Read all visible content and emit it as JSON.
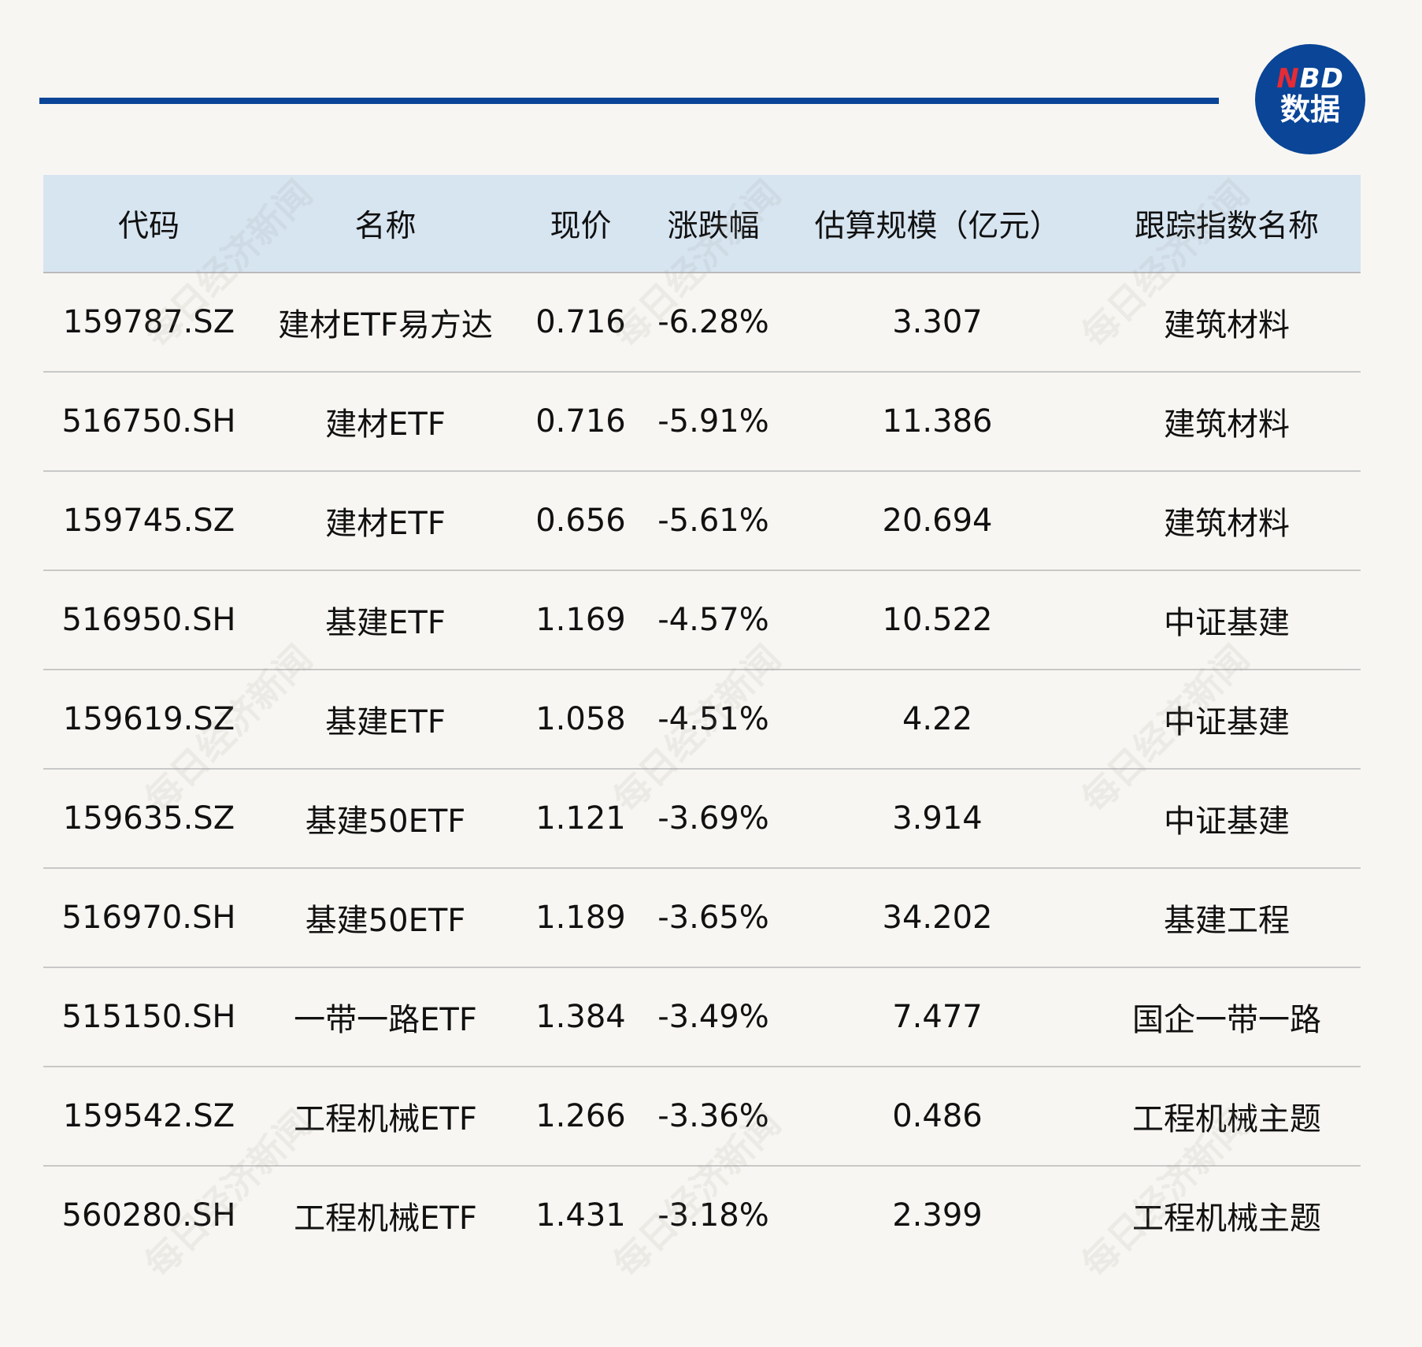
{
  "logo": {
    "en_first": "N",
    "en_rest": "BD",
    "cn": "数据",
    "colors": {
      "circle": "#0a4597",
      "accent": "#e52b35"
    }
  },
  "watermark": "每日经济新闻",
  "table": {
    "headers": [
      "代码",
      "名称",
      "现价",
      "涨跌幅",
      "估算规模（亿元）",
      "跟踪指数名称"
    ],
    "rows": [
      [
        "159787.SZ",
        "建材ETF易方达",
        "0.716",
        "-6.28%",
        "3.307",
        "建筑材料"
      ],
      [
        "516750.SH",
        "建材ETF",
        "0.716",
        "-5.91%",
        "11.386",
        "建筑材料"
      ],
      [
        "159745.SZ",
        "建材ETF",
        "0.656",
        "-5.61%",
        "20.694",
        "建筑材料"
      ],
      [
        "516950.SH",
        "基建ETF",
        "1.169",
        "-4.57%",
        "10.522",
        "中证基建"
      ],
      [
        "159619.SZ",
        "基建ETF",
        "1.058",
        "-4.51%",
        "4.22",
        "中证基建"
      ],
      [
        "159635.SZ",
        "基建50ETF",
        "1.121",
        "-3.69%",
        "3.914",
        "中证基建"
      ],
      [
        "516970.SH",
        "基建50ETF",
        "1.189",
        "-3.65%",
        "34.202",
        "基建工程"
      ],
      [
        "515150.SH",
        "一带一路ETF",
        "1.384",
        "-3.49%",
        "7.477",
        "国企一带一路"
      ],
      [
        "159542.SZ",
        "工程机械ETF",
        "1.266",
        "-3.36%",
        "0.486",
        "工程机械主题"
      ],
      [
        "560280.SH",
        "工程机械ETF",
        "1.431",
        "-3.18%",
        "2.399",
        "工程机械主题"
      ]
    ]
  }
}
